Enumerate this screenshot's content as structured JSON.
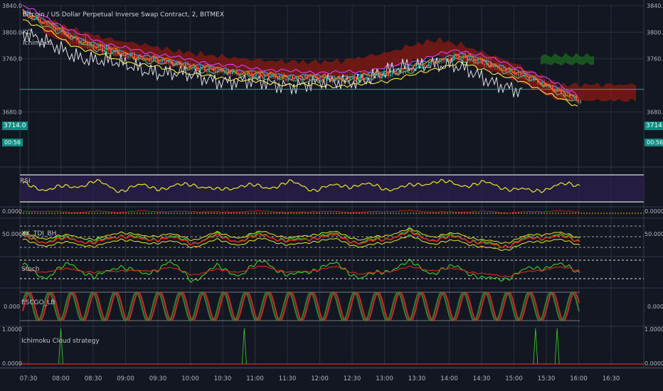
{
  "header": {
    "symbol_title": "Bitcoin / US Dollar Perpetual Inverse Swap Contract, 2, BITMEX",
    "kc_label": "KC",
    "ichimoku_label": "Ichimoku"
  },
  "last_price": {
    "value": "3714.0",
    "countdown": "00:56"
  },
  "colors": {
    "background": "#131722",
    "grid": "#2a2e39",
    "up": "#26a69a",
    "down": "#ef5350",
    "cloud_bull": "#1b5e20",
    "cloud_bear": "#8b1a10",
    "rsi": "#e6e628",
    "stoch_k": "#39d52a",
    "stoch_d": "#e0261e",
    "price_line": "#26a69a"
  },
  "chart_data": [
    {
      "type": "line",
      "panel": "price",
      "title": "Bitcoin / US Dollar Perpetual Inverse Swap Contract, 2, BITMEX",
      "ylim": [
        3600,
        3840
      ],
      "y_ticks": [
        "3840.0",
        "3800.0",
        "3760.0",
        "3680.0"
      ],
      "x_ticks": [
        "07:30",
        "08:00",
        "08:30",
        "09:00",
        "09:30",
        "10:00",
        "10:30",
        "11:00",
        "11:30",
        "12:00",
        "12:30",
        "13:00",
        "13:30",
        "14:00",
        "14:30",
        "15:00",
        "15:30",
        "16:00",
        "16:30"
      ],
      "series": [
        {
          "name": "",
          "values": [
            3830,
            3812,
            3792,
            3778,
            3768,
            3760,
            3755,
            3747,
            3742,
            3738,
            3734,
            3731,
            3730,
            3729,
            3731,
            3737,
            3744,
            3755,
            3763,
            3755,
            3742,
            3730,
            3713,
            3695
          ]
        }
      ]
    },
    {
      "type": "line",
      "panel": "rsi",
      "title": "RSI",
      "series": [
        {
          "name": "RSI",
          "values": [
            62,
            48,
            55,
            70,
            45,
            58,
            50,
            66,
            42,
            60,
            52,
            68,
            48,
            57,
            62,
            50,
            55,
            73,
            60,
            66,
            52,
            40,
            58,
            62
          ]
        }
      ]
    },
    {
      "type": "line",
      "panel": "osc1",
      "y_ticks": [
        "0.0000"
      ]
    },
    {
      "type": "line",
      "panel": "osc2",
      "title": "XX_TDI_BH",
      "y_ticks": [
        "50.0000"
      ]
    },
    {
      "type": "line",
      "panel": "stoch",
      "title": "Stoch",
      "series": [
        {
          "name": "",
          "values": [
            70,
            30,
            80,
            25,
            75,
            35,
            85,
            20,
            65,
            40,
            90,
            30,
            60,
            75,
            25,
            55,
            80,
            45,
            70,
            20,
            30,
            60,
            75,
            50
          ]
        },
        {
          "name": "",
          "values": [
            55,
            50,
            60,
            45,
            55,
            50,
            65,
            40,
            55,
            50,
            70,
            45,
            55,
            65,
            40,
            50,
            65,
            55,
            60,
            40,
            35,
            50,
            65,
            55
          ]
        }
      ]
    },
    {
      "type": "line",
      "panel": "escgo",
      "title": "ESCGO_LB",
      "y_ticks": [
        "0.000"
      ]
    },
    {
      "type": "bar",
      "panel": "strategy",
      "title": "Ichimoku Cloud strategy",
      "y_ticks": [
        "1.0000",
        "0.0000"
      ],
      "signals_at": [
        "08:00",
        "10:50",
        "15:20",
        "15:40"
      ]
    }
  ]
}
